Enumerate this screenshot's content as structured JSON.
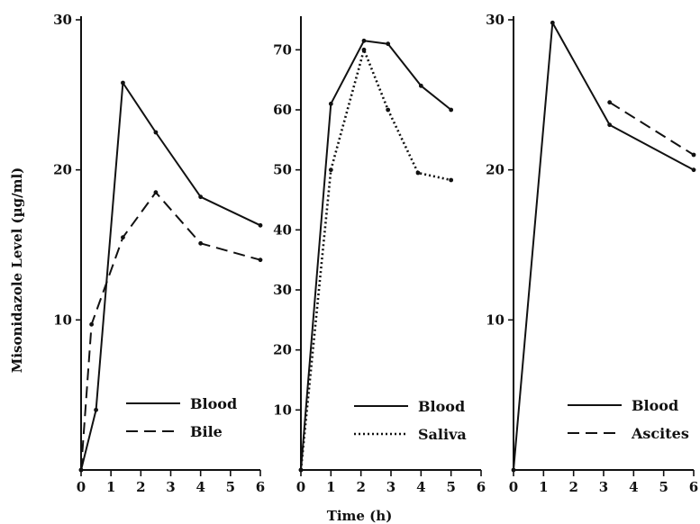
{
  "figure": {
    "ylabel": "Misonidazole Level (µg/ml)",
    "xlabel": "Time (h)"
  },
  "chart_data": [
    {
      "type": "line",
      "xlim": [
        0,
        6
      ],
      "ylim": [
        0,
        30
      ],
      "x_ticks": [
        0,
        1,
        2,
        3,
        4,
        5,
        6
      ],
      "y_ticks": [
        10,
        20,
        30
      ],
      "series": [
        {
          "name": "Blood",
          "style": "solid",
          "x": [
            0,
            0.5,
            1.4,
            2.5,
            4,
            6
          ],
          "y": [
            0,
            4,
            25.8,
            22.5,
            18.2,
            16.3
          ]
        },
        {
          "name": "Bile",
          "style": "dashed",
          "x": [
            0,
            0.35,
            1.4,
            2.5,
            4,
            6
          ],
          "y": [
            0,
            9.7,
            15.5,
            18.5,
            15.1,
            14
          ]
        }
      ]
    },
    {
      "type": "line",
      "xlim": [
        0,
        6
      ],
      "ylim": [
        0,
        75
      ],
      "x_ticks": [
        0,
        1,
        2,
        3,
        4,
        5,
        6
      ],
      "y_ticks": [
        10,
        20,
        30,
        40,
        50,
        60,
        70
      ],
      "series": [
        {
          "name": "Blood",
          "style": "solid",
          "x": [
            0,
            1,
            2.1,
            2.9,
            4,
            5
          ],
          "y": [
            0,
            61,
            71.5,
            71,
            64,
            60
          ]
        },
        {
          "name": "Saliva",
          "style": "dotted",
          "x": [
            0,
            1,
            2.1,
            2.9,
            3.9,
            5
          ],
          "y": [
            0,
            50,
            70,
            60,
            49.5,
            48.3
          ]
        }
      ]
    },
    {
      "type": "line",
      "xlim": [
        0,
        6
      ],
      "ylim": [
        0,
        30
      ],
      "x_ticks": [
        0,
        1,
        2,
        3,
        4,
        5,
        6
      ],
      "y_ticks": [
        10,
        20,
        30
      ],
      "series": [
        {
          "name": "Blood",
          "style": "solid",
          "x": [
            0,
            1.3,
            3.2,
            6
          ],
          "y": [
            0,
            29.8,
            23,
            20
          ]
        },
        {
          "name": "Ascites",
          "style": "dashed",
          "x": [
            3.2,
            6
          ],
          "y": [
            24.5,
            21
          ]
        }
      ]
    }
  ]
}
